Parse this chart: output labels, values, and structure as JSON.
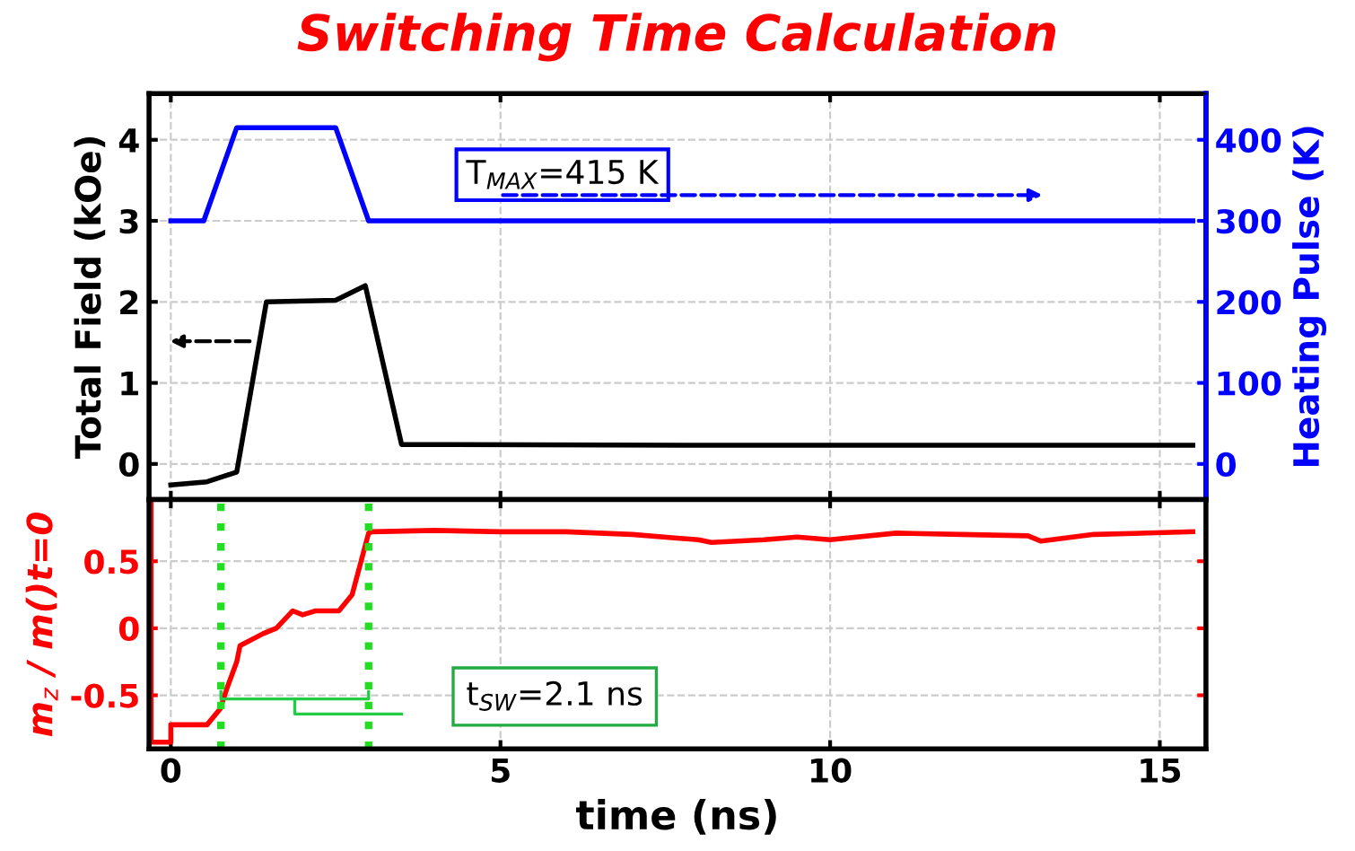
{
  "chart_data": [
    {
      "type": "line",
      "title": "Switching Time Calculation",
      "ylabel": "Total Field (kOe)",
      "y2label": "Heating Pulse (K)",
      "xlim": [
        -0.33,
        15.7
      ],
      "xticks": [
        0,
        5,
        10,
        15
      ],
      "ylim": [
        -0.44,
        4.57
      ],
      "yticks": [
        0,
        1,
        2,
        3,
        4
      ],
      "y2lim": [
        -44,
        457
      ],
      "y2ticks": [
        0,
        100,
        200,
        300,
        400
      ],
      "grid": true,
      "tick_labels": "y",
      "line_style": "solid",
      "marker": "none",
      "annotations": [
        "T$_{MAX}$=415 K"
      ],
      "series": [
        {
          "color": "#000000",
          "x": [
            0,
            0.55,
            1.0,
            1.45,
            2.5,
            2.95,
            3.5,
            8,
            12,
            15.5
          ],
          "values": [
            -0.26,
            -0.22,
            -0.1,
            2.0,
            2.02,
            2.2,
            0.24,
            0.23,
            0.23,
            0.23
          ]
        },
        {
          "color": "#0000ff",
          "axis": "y2",
          "x": [
            0,
            0.5,
            1.0,
            2.5,
            3.0,
            15.5
          ],
          "values": [
            300,
            300,
            415,
            415,
            300,
            300
          ]
        }
      ]
    },
    {
      "type": "line",
      "xlabel": "time (ns)",
      "ylabel": "m$_{z}$ / m()t=0",
      "xlim": [
        -0.33,
        15.7
      ],
      "xticks": [
        0,
        5,
        10,
        15
      ],
      "ylim": [
        -0.9,
        0.96
      ],
      "yticks": [
        -0.5,
        0,
        0.5
      ],
      "grid": true,
      "line_style": "solid",
      "marker": "none",
      "annotations": [
        "t$_{SW}$=2.1 ns"
      ],
      "ref_lines": [
        {
          "axis": "x",
          "value": 0.76,
          "color": "#22dd22",
          "line_style": "dotted"
        },
        {
          "axis": "x",
          "value": 3.0,
          "color": "#22dd22",
          "line_style": "dotted"
        }
      ],
      "series": [
        {
          "color": "#ff0000",
          "x": [
            -0.3,
            -0.3,
            0,
            0,
            0.55,
            0.75,
            0.85,
            1.0,
            1.05,
            1.4,
            1.6,
            1.85,
            2.0,
            2.2,
            2.55,
            2.75,
            3.0,
            3.05,
            4,
            5,
            6,
            7,
            8,
            8.2,
            9,
            9.5,
            10,
            11,
            12,
            13,
            13.2,
            14,
            15.5
          ],
          "values": [
            0.95,
            -0.85,
            -0.85,
            -0.72,
            -0.72,
            -0.6,
            -0.45,
            -0.25,
            -0.13,
            -0.04,
            0.0,
            0.13,
            0.1,
            0.13,
            0.13,
            0.25,
            0.71,
            0.72,
            0.73,
            0.72,
            0.72,
            0.7,
            0.66,
            0.64,
            0.66,
            0.68,
            0.66,
            0.71,
            0.7,
            0.69,
            0.65,
            0.7,
            0.72
          ]
        }
      ]
    }
  ]
}
